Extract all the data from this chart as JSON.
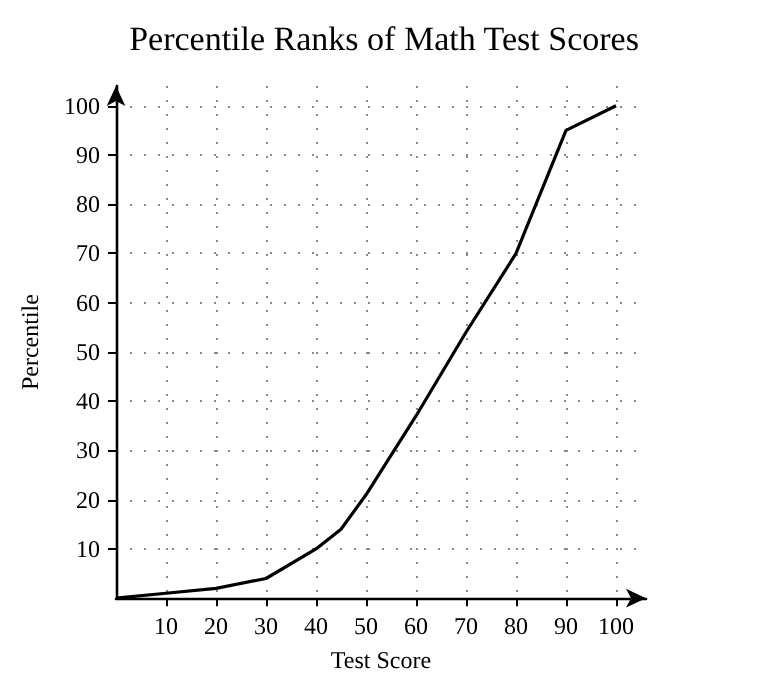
{
  "chart_data": {
    "type": "line",
    "title": "Percentile Ranks of Math Test Scores",
    "xlabel": "Test Score",
    "ylabel": "Percentile",
    "x": [
      0,
      10,
      20,
      30,
      40,
      45,
      50,
      60,
      70,
      80,
      90,
      100
    ],
    "series": [
      {
        "color": "#000000",
        "values": [
          0,
          1,
          2,
          4,
          10,
          14,
          21,
          37,
          54,
          70,
          95,
          100
        ]
      }
    ],
    "xlim": [
      0,
      106
    ],
    "ylim": [
      0,
      104
    ],
    "xticks": [
      10,
      20,
      30,
      40,
      50,
      60,
      70,
      80,
      90,
      100
    ],
    "yticks": [
      10,
      20,
      30,
      40,
      50,
      60,
      70,
      80,
      90,
      100
    ],
    "grid": true,
    "marker": "none",
    "line_style": "solid"
  }
}
